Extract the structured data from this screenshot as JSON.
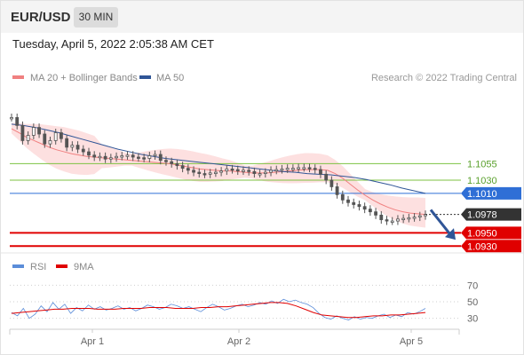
{
  "header": {
    "symbol": "EUR/USD",
    "timeframe": "30 MIN",
    "datetime": "Tuesday, April 5, 2022 2:05:38 AM CET"
  },
  "legend": {
    "items": [
      {
        "name": "MA 20 + Bollinger Bands",
        "color": "#f08080"
      },
      {
        "name": "MA 50",
        "color": "#2f5597"
      }
    ],
    "credit": "Research © 2022 Trading Central"
  },
  "rsi_legend": {
    "items": [
      {
        "name": "RSI",
        "color": "#5b8dd9"
      },
      {
        "name": "9MA",
        "color": "#e00000"
      }
    ]
  },
  "colors": {
    "price": "#555555",
    "bollinger_fill": "#fde0e0",
    "ma20": "#f08080",
    "ma50": "#2f5597",
    "level_green": "#7dc242",
    "level_green_text": "#5aa02c",
    "level_blue": "#2f6fd6",
    "level_red": "#e00000",
    "current": "#333333",
    "arrow": "#2f5597",
    "rsi": "#5b8dd9",
    "rsi_ma": "#e00000"
  },
  "chart_data": [
    {
      "type": "line",
      "title": "",
      "panel": "price",
      "x_ticks": [
        "Apr 1",
        "Apr 2",
        "Apr 5"
      ],
      "ylim": [
        1.0925,
        1.117
      ],
      "levels": [
        {
          "value": 1.1055,
          "label": "1.1055",
          "kind": "resistance"
        },
        {
          "value": 1.103,
          "label": "1.1030",
          "kind": "resistance"
        },
        {
          "value": 1.101,
          "label": "1.1010",
          "kind": "pivot"
        },
        {
          "value": 1.095,
          "label": "1.0950",
          "kind": "support"
        },
        {
          "value": 1.093,
          "label": "1.0930",
          "kind": "support"
        }
      ],
      "current_price": {
        "value": 1.0978,
        "label": "1.0978"
      },
      "forecast_arrow": {
        "from": 1.0985,
        "to": 1.0945,
        "direction": "down"
      },
      "series": [
        {
          "name": "Price",
          "values": [
            1.1125,
            1.1113,
            1.109,
            1.1098,
            1.111,
            1.11,
            1.1085,
            1.109,
            1.1102,
            1.1093,
            1.108,
            1.1083,
            1.1077,
            1.1073,
            1.1068,
            1.1065,
            1.1066,
            1.1062,
            1.1064,
            1.1066,
            1.1067,
            1.1068,
            1.1065,
            1.1064,
            1.1063,
            1.1067,
            1.1069,
            1.106,
            1.1058,
            1.1055,
            1.1052,
            1.1048,
            1.1045,
            1.1042,
            1.104,
            1.1039,
            1.1041,
            1.1042,
            1.1044,
            1.1047,
            1.1046,
            1.1044,
            1.1045,
            1.1043,
            1.104,
            1.104,
            1.1042,
            1.1045,
            1.1046,
            1.1047,
            1.1048,
            1.1048,
            1.1049,
            1.1049,
            1.1048,
            1.1046,
            1.1039,
            1.103,
            1.102,
            1.1008,
            1.1,
            1.0996,
            1.0993,
            1.099,
            1.0986,
            1.0982,
            1.0977,
            1.097,
            1.0968,
            1.0968,
            1.0971,
            1.0972,
            1.0973,
            1.0974,
            1.0976,
            1.0978
          ]
        },
        {
          "name": "MA 20",
          "values": [
            1.1108,
            1.1102,
            1.1095,
            1.109,
            1.1085,
            1.108,
            1.1076,
            1.1073,
            1.107,
            1.1068,
            1.1066,
            1.1065,
            1.1064,
            1.1063,
            1.1062,
            1.1061,
            1.106,
            1.1059,
            1.1058,
            1.1057,
            1.1056,
            1.1055,
            1.1053,
            1.1051,
            1.1049,
            1.1047,
            1.1046,
            1.1045,
            1.1044,
            1.1044,
            1.1043,
            1.1042,
            1.1041,
            1.1041,
            1.1041,
            1.1042,
            1.1043,
            1.1044,
            1.1045,
            1.1046,
            1.1046,
            1.1046,
            1.1045,
            1.104,
            1.1033,
            1.1024,
            1.1015,
            1.1007,
            1.1,
            1.0994,
            1.0989,
            1.0985,
            1.0982,
            1.098,
            1.0979,
            1.0978
          ]
        },
        {
          "name": "MA 50",
          "values": [
            1.1115,
            1.1113,
            1.111,
            1.1106,
            1.1102,
            1.1097,
            1.1092,
            1.1087,
            1.1082,
            1.1077,
            1.1073,
            1.1069,
            1.1066,
            1.1063,
            1.1061,
            1.1059,
            1.1057,
            1.1055,
            1.1053,
            1.1051,
            1.1049,
            1.1047,
            1.1045,
            1.1043,
            1.1042,
            1.104,
            1.1039,
            1.1038,
            1.1036,
            1.1034,
            1.1031,
            1.1027,
            1.1023,
            1.1018,
            1.1014,
            1.101
          ]
        }
      ]
    },
    {
      "type": "line",
      "title": "",
      "panel": "rsi",
      "ylim": [
        20,
        80
      ],
      "y_ticks": [
        70,
        50,
        30
      ],
      "x_ticks": [
        "Apr 1",
        "Apr 2",
        "Apr 5"
      ],
      "series": [
        {
          "name": "RSI",
          "values": [
            37,
            33,
            42,
            30,
            35,
            45,
            38,
            49,
            41,
            47,
            36,
            43,
            39,
            46,
            41,
            44,
            40,
            42,
            45,
            41,
            43,
            39,
            42,
            46,
            44,
            41,
            43,
            47,
            45,
            42,
            44,
            41,
            38,
            43,
            47,
            44,
            40,
            42,
            45,
            47,
            44,
            46,
            49,
            47,
            51,
            48,
            53,
            50,
            52,
            49,
            47,
            43,
            36,
            31,
            29,
            33,
            30,
            28,
            32,
            29,
            31,
            30,
            33,
            35,
            31,
            34,
            32,
            37,
            35,
            38,
            42
          ]
        },
        {
          "name": "9MA",
          "values": [
            36,
            37,
            38,
            39,
            40,
            41,
            41,
            42,
            42,
            42,
            41,
            41,
            41,
            42,
            42,
            42,
            43,
            43,
            43,
            42,
            42,
            42,
            43,
            43,
            44,
            44,
            45,
            46,
            47,
            48,
            49,
            49,
            48,
            45,
            41,
            37,
            34,
            33,
            32,
            31,
            31,
            32,
            33,
            33,
            34,
            34,
            35,
            36,
            37
          ]
        }
      ]
    }
  ]
}
